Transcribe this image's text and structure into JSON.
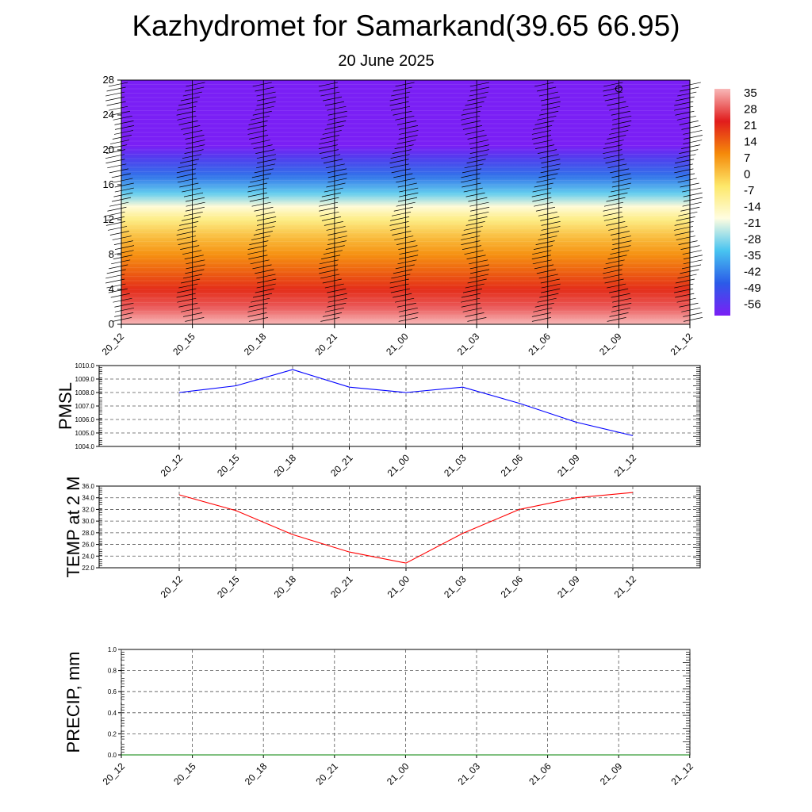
{
  "title": "Kazhydromet for Samarkand(39.65 66.95)",
  "subtitle": "20 June 2025",
  "time_labels": [
    "20_12",
    "20_15",
    "20_18",
    "20_21",
    "21_00",
    "21_03",
    "21_06",
    "21_09",
    "21_12"
  ],
  "colorbar": {
    "labels": [
      "35",
      "28",
      "21",
      "14",
      "7",
      "0",
      "-7",
      "-14",
      "-21",
      "-28",
      "-35",
      "-42",
      "-49",
      "-56"
    ],
    "colors": [
      "#f8b8b8",
      "#e11c1c",
      "#f58a0a",
      "#fde86a",
      "#fffde0",
      "#48c4f0",
      "#2b5be8",
      "#7a1ff5"
    ]
  },
  "chart_data": [
    {
      "type": "heatmap",
      "title": "",
      "ylabel": "",
      "categories": [
        "20_12",
        "20_15",
        "20_18",
        "20_21",
        "21_00",
        "21_03",
        "21_06",
        "21_09",
        "21_12"
      ],
      "ylim": [
        0,
        28
      ],
      "yticks": [
        0,
        4,
        8,
        12,
        16,
        20,
        24,
        28
      ],
      "y_levels_km": [
        0,
        2,
        4,
        6,
        8,
        10,
        12,
        13.5,
        15,
        17,
        19,
        20.5,
        22,
        28
      ],
      "temperature_by_level": [
        35,
        27,
        20,
        14,
        8,
        2,
        -7,
        -16,
        -28,
        -40,
        -49,
        -56,
        -58,
        -58
      ],
      "value_range": [
        -56,
        35
      ],
      "wind_barbs": "black barbs along each time column"
    },
    {
      "type": "line",
      "ylabel": "PMSL",
      "categories": [
        "20_12",
        "20_15",
        "20_18",
        "20_21",
        "21_00",
        "21_03",
        "21_06",
        "21_09",
        "21_12"
      ],
      "values": [
        1008.0,
        1008.5,
        1009.7,
        1008.4,
        1008.0,
        1008.4,
        1007.2,
        1005.8,
        1004.8
      ],
      "ylim": [
        1004.0,
        1010.0
      ],
      "yticks": [
        "1004.0",
        "1005.0",
        "1006.0",
        "1007.0",
        "1008.0",
        "1009.0",
        "1010.0"
      ],
      "color": "#0000ff",
      "grid": true
    },
    {
      "type": "line",
      "ylabel": "TEMP at 2 M",
      "categories": [
        "20_12",
        "20_15",
        "20_18",
        "20_21",
        "21_00",
        "21_03",
        "21_06",
        "21_09",
        "21_12"
      ],
      "values": [
        34.5,
        31.8,
        27.7,
        24.7,
        22.8,
        27.9,
        32.0,
        34.0,
        34.9
      ],
      "ylim": [
        22.0,
        36.0
      ],
      "yticks": [
        "22.0",
        "24.0",
        "26.0",
        "28.0",
        "30.0",
        "32.0",
        "34.0",
        "36.0"
      ],
      "color": "#ff0000",
      "grid": true
    },
    {
      "type": "line",
      "ylabel": "PRECIP, mm",
      "categories": [
        "20_12",
        "20_15",
        "20_18",
        "20_21",
        "21_00",
        "21_03",
        "21_06",
        "21_09",
        "21_12"
      ],
      "values": [
        0,
        0,
        0,
        0,
        0,
        0,
        0,
        0,
        0
      ],
      "ylim": [
        0.0,
        1.0
      ],
      "yticks": [
        "0.0",
        "0.2",
        "0.4",
        "0.6",
        "0.8",
        "1.0"
      ],
      "color": "#008000",
      "grid": true
    }
  ]
}
